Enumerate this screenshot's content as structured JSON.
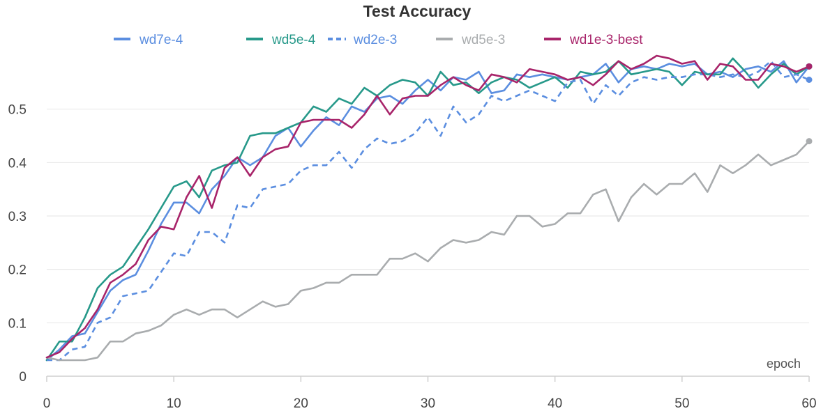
{
  "chart_data": {
    "type": "line",
    "title": "Test Accuracy",
    "xlabel": "epoch",
    "ylabel": "",
    "xlim": [
      0,
      60
    ],
    "ylim": [
      0,
      0.6
    ],
    "x_ticks": [
      0,
      10,
      20,
      30,
      40,
      50,
      60
    ],
    "x_tick_labels": [
      "0",
      "10",
      "20",
      "30",
      "40",
      "50",
      "60"
    ],
    "y_ticks": [
      0,
      0.1,
      0.2,
      0.3,
      0.4,
      0.5
    ],
    "y_tick_labels": [
      "0",
      "0.1",
      "0.2",
      "0.3",
      "0.4",
      "0.5"
    ],
    "grid": "horizontal",
    "legend_position": "top",
    "series": [
      {
        "name": "wd7e-4",
        "color": "#5b8ee0",
        "dash": "solid",
        "x": [
          0,
          1,
          2,
          3,
          4,
          5,
          6,
          7,
          8,
          9,
          10,
          11,
          12,
          13,
          14,
          15,
          16,
          17,
          18,
          19,
          20,
          21,
          22,
          23,
          24,
          25,
          26,
          27,
          28,
          29,
          30,
          31,
          32,
          33,
          34,
          35,
          36,
          37,
          38,
          39,
          40,
          41,
          42,
          43,
          44,
          45,
          46,
          47,
          48,
          49,
          50,
          51,
          52,
          53,
          54,
          55,
          56,
          57,
          58,
          59,
          60
        ],
        "y": [
          0.03,
          0.05,
          0.075,
          0.08,
          0.12,
          0.16,
          0.18,
          0.19,
          0.235,
          0.285,
          0.325,
          0.325,
          0.305,
          0.35,
          0.375,
          0.41,
          0.395,
          0.41,
          0.45,
          0.465,
          0.43,
          0.46,
          0.485,
          0.47,
          0.505,
          0.495,
          0.52,
          0.525,
          0.51,
          0.535,
          0.555,
          0.535,
          0.56,
          0.555,
          0.57,
          0.53,
          0.535,
          0.565,
          0.56,
          0.565,
          0.56,
          0.555,
          0.56,
          0.565,
          0.585,
          0.55,
          0.575,
          0.58,
          0.575,
          0.585,
          0.58,
          0.585,
          0.565,
          0.57,
          0.56,
          0.575,
          0.58,
          0.57,
          0.59,
          0.55,
          0.58
        ]
      },
      {
        "name": "wd5e-4",
        "color": "#27998a",
        "dash": "solid",
        "x": [
          0,
          1,
          2,
          3,
          4,
          5,
          6,
          7,
          8,
          9,
          10,
          11,
          12,
          13,
          14,
          15,
          16,
          17,
          18,
          19,
          20,
          21,
          22,
          23,
          24,
          25,
          26,
          27,
          28,
          29,
          30,
          31,
          32,
          33,
          34,
          35,
          36,
          37,
          38,
          39,
          40,
          41,
          42,
          43,
          44,
          45,
          46,
          47,
          48,
          49,
          50,
          51,
          52,
          53,
          54,
          55,
          56,
          57,
          58,
          59,
          60
        ],
        "y": [
          0.03,
          0.065,
          0.065,
          0.11,
          0.165,
          0.19,
          0.205,
          0.24,
          0.275,
          0.315,
          0.355,
          0.365,
          0.335,
          0.385,
          0.395,
          0.4,
          0.45,
          0.455,
          0.455,
          0.465,
          0.475,
          0.505,
          0.495,
          0.52,
          0.51,
          0.54,
          0.525,
          0.545,
          0.555,
          0.55,
          0.525,
          0.57,
          0.545,
          0.55,
          0.53,
          0.55,
          0.56,
          0.555,
          0.54,
          0.55,
          0.56,
          0.54,
          0.57,
          0.565,
          0.57,
          0.59,
          0.565,
          0.57,
          0.575,
          0.57,
          0.545,
          0.57,
          0.565,
          0.565,
          0.595,
          0.57,
          0.54,
          0.565,
          0.585,
          0.565,
          0.58
        ]
      },
      {
        "name": "wd2e-3",
        "color": "#5b8ee0",
        "dash": "dashed",
        "x": [
          0,
          1,
          2,
          3,
          4,
          5,
          6,
          7,
          8,
          9,
          10,
          11,
          12,
          13,
          14,
          15,
          16,
          17,
          18,
          19,
          20,
          21,
          22,
          23,
          24,
          25,
          26,
          27,
          28,
          29,
          30,
          31,
          32,
          33,
          34,
          35,
          36,
          37,
          38,
          39,
          40,
          41,
          42,
          43,
          44,
          45,
          46,
          47,
          48,
          49,
          50,
          51,
          52,
          53,
          54,
          55,
          56,
          57,
          58,
          59,
          60
        ],
        "y": [
          0.03,
          0.03,
          0.05,
          0.055,
          0.1,
          0.11,
          0.15,
          0.155,
          0.16,
          0.195,
          0.23,
          0.225,
          0.27,
          0.27,
          0.25,
          0.32,
          0.315,
          0.35,
          0.355,
          0.36,
          0.385,
          0.395,
          0.395,
          0.42,
          0.39,
          0.425,
          0.445,
          0.435,
          0.44,
          0.455,
          0.485,
          0.45,
          0.505,
          0.475,
          0.49,
          0.525,
          0.515,
          0.525,
          0.535,
          0.525,
          0.515,
          0.55,
          0.555,
          0.51,
          0.545,
          0.525,
          0.55,
          0.56,
          0.555,
          0.56,
          0.56,
          0.565,
          0.565,
          0.56,
          0.565,
          0.56,
          0.57,
          0.59,
          0.56,
          0.565,
          0.555
        ]
      },
      {
        "name": "wd5e-3",
        "color": "#a9acae",
        "dash": "solid",
        "x": [
          0,
          1,
          2,
          3,
          4,
          5,
          6,
          7,
          8,
          9,
          10,
          11,
          12,
          13,
          14,
          15,
          16,
          17,
          18,
          19,
          20,
          21,
          22,
          23,
          24,
          25,
          26,
          27,
          28,
          29,
          30,
          31,
          32,
          33,
          34,
          35,
          36,
          37,
          38,
          39,
          40,
          41,
          42,
          43,
          44,
          45,
          46,
          47,
          48,
          49,
          50,
          51,
          52,
          53,
          54,
          55,
          56,
          57,
          58,
          59,
          60
        ],
        "y": [
          0.035,
          0.03,
          0.03,
          0.03,
          0.035,
          0.065,
          0.065,
          0.08,
          0.085,
          0.095,
          0.115,
          0.125,
          0.115,
          0.125,
          0.125,
          0.11,
          0.125,
          0.14,
          0.13,
          0.135,
          0.16,
          0.165,
          0.175,
          0.175,
          0.19,
          0.19,
          0.19,
          0.22,
          0.22,
          0.23,
          0.215,
          0.24,
          0.255,
          0.25,
          0.255,
          0.27,
          0.265,
          0.3,
          0.3,
          0.28,
          0.285,
          0.305,
          0.305,
          0.34,
          0.35,
          0.29,
          0.335,
          0.36,
          0.34,
          0.36,
          0.36,
          0.38,
          0.345,
          0.395,
          0.38,
          0.395,
          0.415,
          0.395,
          0.405,
          0.415,
          0.44
        ]
      },
      {
        "name": "wd1e-3-best",
        "color": "#a8246a",
        "dash": "solid",
        "x": [
          0,
          1,
          2,
          3,
          4,
          5,
          6,
          7,
          8,
          9,
          10,
          11,
          12,
          13,
          14,
          15,
          16,
          17,
          18,
          19,
          20,
          21,
          22,
          23,
          24,
          25,
          26,
          27,
          28,
          29,
          30,
          31,
          32,
          33,
          34,
          35,
          36,
          37,
          38,
          39,
          40,
          41,
          42,
          43,
          44,
          45,
          46,
          47,
          48,
          49,
          50,
          51,
          52,
          53,
          54,
          55,
          56,
          57,
          58,
          59,
          60
        ],
        "y": [
          0.035,
          0.045,
          0.07,
          0.09,
          0.125,
          0.175,
          0.19,
          0.21,
          0.255,
          0.28,
          0.275,
          0.335,
          0.375,
          0.315,
          0.39,
          0.41,
          0.375,
          0.41,
          0.425,
          0.43,
          0.475,
          0.48,
          0.48,
          0.48,
          0.465,
          0.49,
          0.525,
          0.49,
          0.52,
          0.525,
          0.525,
          0.545,
          0.56,
          0.545,
          0.535,
          0.565,
          0.56,
          0.55,
          0.575,
          0.57,
          0.565,
          0.555,
          0.56,
          0.545,
          0.565,
          0.59,
          0.575,
          0.585,
          0.6,
          0.595,
          0.585,
          0.59,
          0.555,
          0.585,
          0.58,
          0.555,
          0.555,
          0.585,
          0.58,
          0.57,
          0.58
        ]
      }
    ]
  }
}
